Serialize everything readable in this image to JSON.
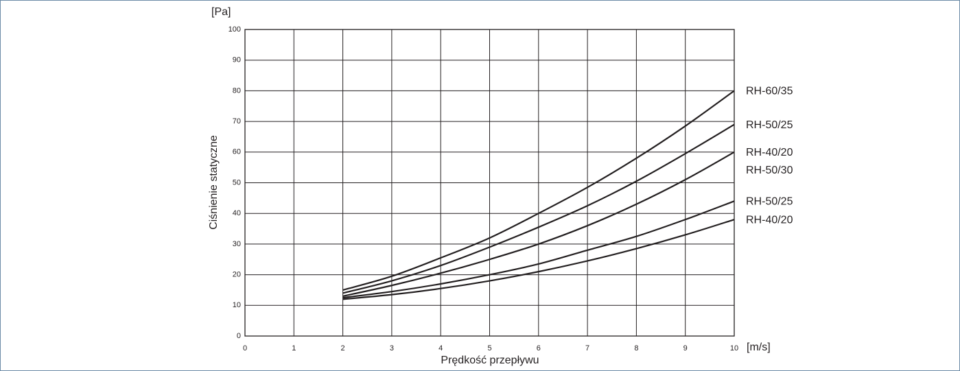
{
  "chart_data": {
    "type": "line",
    "y_unit": "[Pa]",
    "x_unit": "[m/s]",
    "ylabel": "Ciśnienie statyczne",
    "xlabel": "Prędkość przepływu",
    "x": [
      2,
      3,
      4,
      5,
      6,
      7,
      8,
      9,
      10
    ],
    "series": [
      {
        "name": "RH-60/35",
        "color": "#231f20",
        "values": [
          15,
          19.5,
          25.5,
          32,
          40,
          48.5,
          58,
          68.5,
          80
        ]
      },
      {
        "name": "RH-50/25",
        "color": "#231f20",
        "values": [
          14,
          18,
          23,
          29,
          35.5,
          42.5,
          50.5,
          59.5,
          69
        ]
      },
      {
        "name": "RH-40/20",
        "color": "#231f20",
        "values": [
          13,
          16.5,
          20.5,
          25,
          30,
          36,
          43,
          51,
          60
        ]
      },
      {
        "name": "RH-50/25",
        "color": "#231f20",
        "values": [
          12.5,
          14.5,
          17,
          20,
          23.5,
          28,
          32.5,
          38,
          44
        ]
      },
      {
        "name": "RH-40/20",
        "color": "#231f20",
        "values": [
          12,
          13.5,
          15.5,
          18,
          21,
          24.5,
          28.5,
          33,
          38
        ]
      }
    ],
    "annotations": [
      "RH-50/30"
    ],
    "xlim": [
      0,
      10
    ],
    "ylim": [
      0,
      100
    ],
    "xticks": [
      0,
      1,
      2,
      3,
      4,
      5,
      6,
      7,
      8,
      9,
      10
    ],
    "yticks": [
      0,
      10,
      20,
      30,
      40,
      50,
      60,
      70,
      80,
      90,
      100
    ],
    "grid": true
  }
}
